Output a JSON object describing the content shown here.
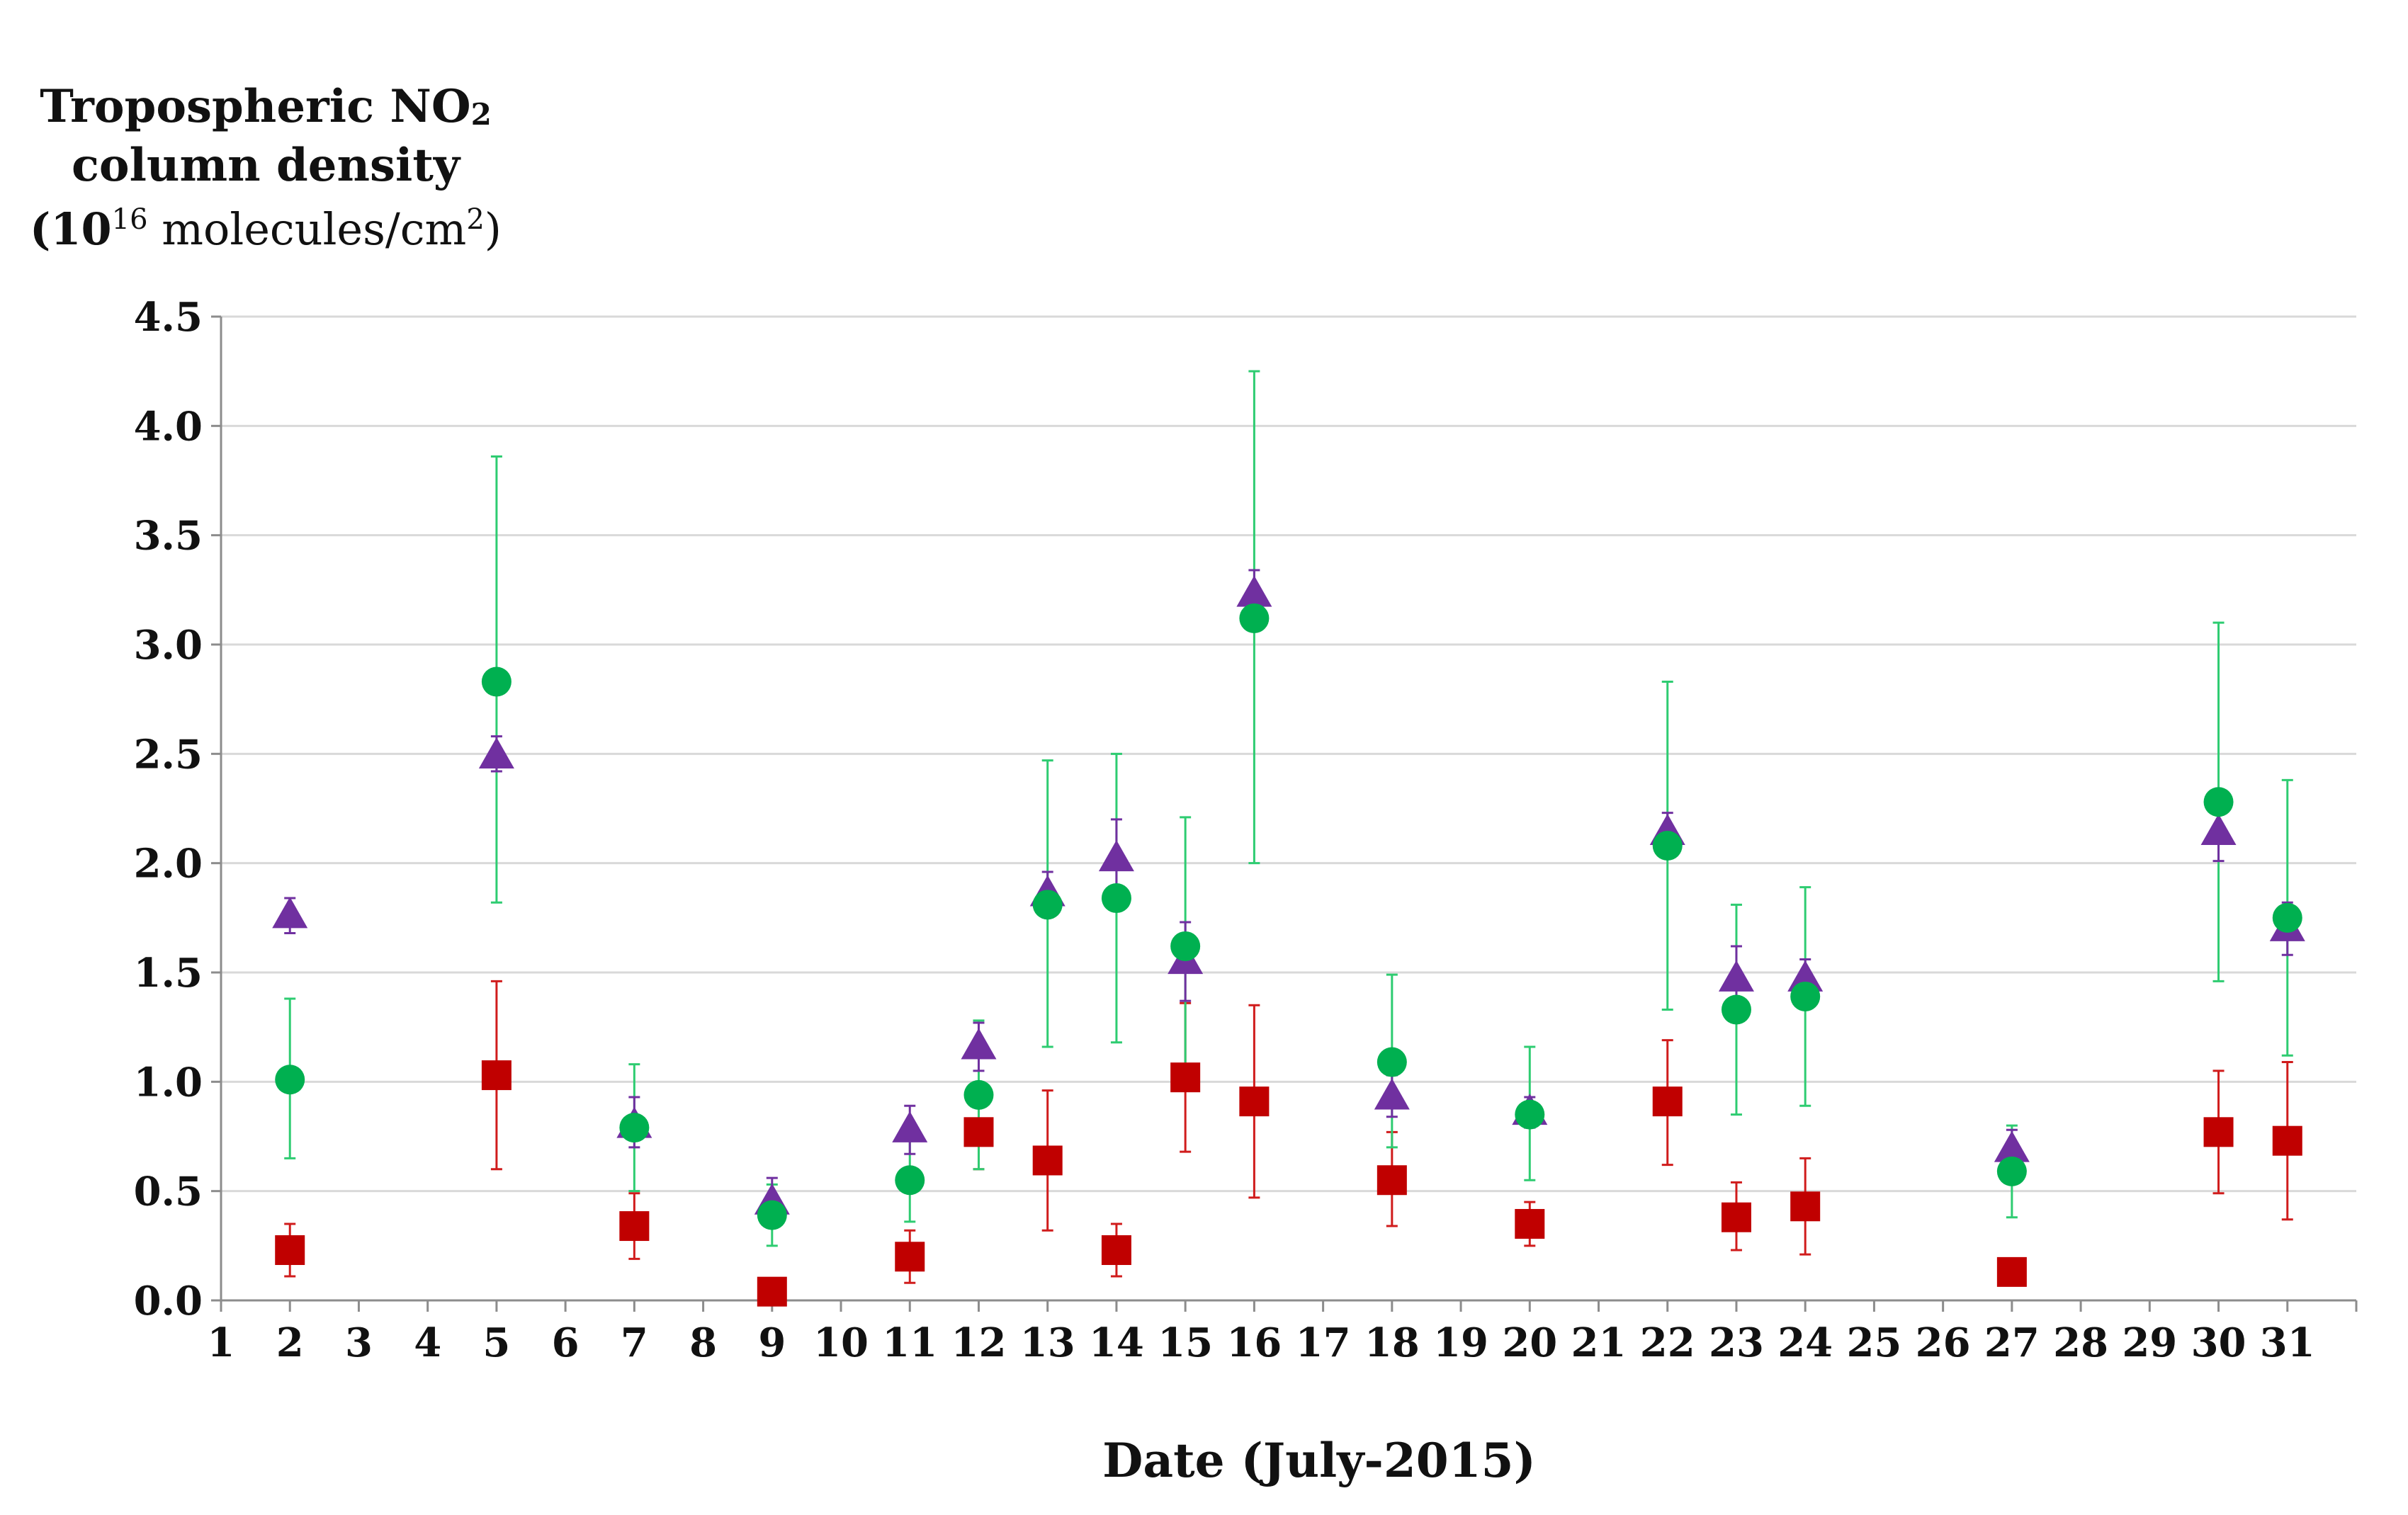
{
  "chart_data": {
    "type": "scatter",
    "title": "",
    "ylabel_lines": {
      "line1_main": "Tropospheric NO",
      "line1_sub": "2",
      "line2": "column density",
      "line3_open": "(10",
      "line3_sup": "16",
      "line3_mid": " molecules/cm",
      "line3_sup2": "2",
      "line3_close": ")"
    },
    "xlabel": "Date (July-2015)",
    "ylim": [
      0,
      4.5
    ],
    "yticks": [
      "0.0",
      "0.5",
      "1.0",
      "1.5",
      "2.0",
      "2.5",
      "3.0",
      "3.5",
      "4.0",
      "4.5"
    ],
    "xlim": [
      1,
      32
    ],
    "xticks": [
      "1",
      "2",
      "3",
      "4",
      "5",
      "6",
      "7",
      "8",
      "9",
      "10",
      "11",
      "12",
      "13",
      "14",
      "15",
      "16",
      "17",
      "18",
      "19",
      "20",
      "21",
      "22",
      "23",
      "24",
      "25",
      "26",
      "27",
      "28",
      "29",
      "30",
      "31"
    ],
    "grid": true,
    "legend": "none",
    "series": [
      {
        "name": "triangle",
        "marker": "triangle",
        "color": "#7030A0",
        "points": [
          {
            "x": 2,
            "y": 1.76,
            "lo": 1.68,
            "hi": 1.84
          },
          {
            "x": 5,
            "y": 2.49,
            "lo": 2.42,
            "hi": 2.58
          },
          {
            "x": 7,
            "y": 0.8,
            "lo": 0.7,
            "hi": 0.93
          },
          {
            "x": 9,
            "y": 0.45,
            "lo": 0.34,
            "hi": 0.56
          },
          {
            "x": 11,
            "y": 0.78,
            "lo": 0.67,
            "hi": 0.89
          },
          {
            "x": 12,
            "y": 1.16,
            "lo": 1.05,
            "hi": 1.27
          },
          {
            "x": 13,
            "y": 1.86,
            "lo": 1.76,
            "hi": 1.96
          },
          {
            "x": 14,
            "y": 2.02,
            "lo": 1.84,
            "hi": 2.2
          },
          {
            "x": 15,
            "y": 1.55,
            "lo": 1.37,
            "hi": 1.73
          },
          {
            "x": 16,
            "y": 3.23,
            "lo": 3.12,
            "hi": 3.34
          },
          {
            "x": 18,
            "y": 0.93,
            "lo": 0.84,
            "hi": 1.03
          },
          {
            "x": 20,
            "y": 0.86,
            "lo": 0.79,
            "hi": 0.93
          },
          {
            "x": 22,
            "y": 2.14,
            "lo": 2.05,
            "hi": 2.23
          },
          {
            "x": 23,
            "y": 1.47,
            "lo": 1.32,
            "hi": 1.62
          },
          {
            "x": 24,
            "y": 1.47,
            "lo": 1.38,
            "hi": 1.56
          },
          {
            "x": 27,
            "y": 0.69,
            "lo": 0.6,
            "hi": 0.78
          },
          {
            "x": 30,
            "y": 2.14,
            "lo": 2.01,
            "hi": 2.27
          },
          {
            "x": 31,
            "y": 1.7,
            "lo": 1.58,
            "hi": 1.82
          }
        ]
      },
      {
        "name": "circle",
        "marker": "circle",
        "color": "#00B050",
        "points": [
          {
            "x": 2,
            "y": 1.01,
            "lo": 0.65,
            "hi": 1.38
          },
          {
            "x": 5,
            "y": 2.83,
            "lo": 1.82,
            "hi": 3.86
          },
          {
            "x": 7,
            "y": 0.79,
            "lo": 0.5,
            "hi": 1.08
          },
          {
            "x": 9,
            "y": 0.39,
            "lo": 0.25,
            "hi": 0.53
          },
          {
            "x": 11,
            "y": 0.55,
            "lo": 0.36,
            "hi": 0.74
          },
          {
            "x": 12,
            "y": 0.94,
            "lo": 0.6,
            "hi": 1.28
          },
          {
            "x": 13,
            "y": 1.81,
            "lo": 1.16,
            "hi": 2.47
          },
          {
            "x": 14,
            "y": 1.84,
            "lo": 1.18,
            "hi": 2.5
          },
          {
            "x": 15,
            "y": 1.62,
            "lo": 1.04,
            "hi": 2.21
          },
          {
            "x": 16,
            "y": 3.12,
            "lo": 2.0,
            "hi": 4.25
          },
          {
            "x": 18,
            "y": 1.09,
            "lo": 0.7,
            "hi": 1.49
          },
          {
            "x": 20,
            "y": 0.85,
            "lo": 0.55,
            "hi": 1.16
          },
          {
            "x": 22,
            "y": 2.08,
            "lo": 1.33,
            "hi": 2.83
          },
          {
            "x": 23,
            "y": 1.33,
            "lo": 0.85,
            "hi": 1.81
          },
          {
            "x": 24,
            "y": 1.39,
            "lo": 0.89,
            "hi": 1.89
          },
          {
            "x": 27,
            "y": 0.59,
            "lo": 0.38,
            "hi": 0.8
          },
          {
            "x": 30,
            "y": 2.28,
            "lo": 1.46,
            "hi": 3.1
          },
          {
            "x": 31,
            "y": 1.75,
            "lo": 1.12,
            "hi": 2.38
          }
        ]
      },
      {
        "name": "square",
        "marker": "square",
        "color": "#C00000",
        "points": [
          {
            "x": 2,
            "y": 0.23,
            "lo": 0.11,
            "hi": 0.35
          },
          {
            "x": 5,
            "y": 1.03,
            "lo": 0.6,
            "hi": 1.46
          },
          {
            "x": 7,
            "y": 0.34,
            "lo": 0.19,
            "hi": 0.49
          },
          {
            "x": 9,
            "y": 0.04,
            "lo": 0.02,
            "hi": 0.06
          },
          {
            "x": 11,
            "y": 0.2,
            "lo": 0.08,
            "hi": 0.32
          },
          {
            "x": 12,
            "y": 0.77,
            "lo": 0.6,
            "hi": 0.94
          },
          {
            "x": 13,
            "y": 0.64,
            "lo": 0.32,
            "hi": 0.96
          },
          {
            "x": 14,
            "y": 0.23,
            "lo": 0.11,
            "hi": 0.35
          },
          {
            "x": 15,
            "y": 1.02,
            "lo": 0.68,
            "hi": 1.36
          },
          {
            "x": 16,
            "y": 0.91,
            "lo": 0.47,
            "hi": 1.35
          },
          {
            "x": 18,
            "y": 0.55,
            "lo": 0.34,
            "hi": 0.77
          },
          {
            "x": 20,
            "y": 0.35,
            "lo": 0.25,
            "hi": 0.45
          },
          {
            "x": 22,
            "y": 0.91,
            "lo": 0.62,
            "hi": 1.19
          },
          {
            "x": 23,
            "y": 0.38,
            "lo": 0.23,
            "hi": 0.54
          },
          {
            "x": 24,
            "y": 0.43,
            "lo": 0.21,
            "hi": 0.65
          },
          {
            "x": 27,
            "y": 0.13,
            "lo": 0.12,
            "hi": 0.14
          },
          {
            "x": 30,
            "y": 0.77,
            "lo": 0.49,
            "hi": 1.05
          },
          {
            "x": 31,
            "y": 0.73,
            "lo": 0.37,
            "hi": 1.09
          }
        ]
      }
    ]
  }
}
